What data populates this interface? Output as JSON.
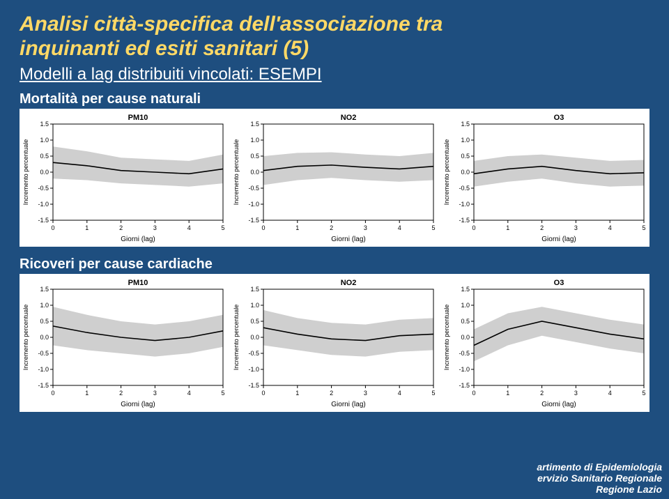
{
  "slide": {
    "title_line1": "Analisi città-specifica dell'associazione tra",
    "title_line2": "inquinanti ed esiti sanitari (5)",
    "subtitle": "Modelli a lag distribuiti vincolati: ESEMPI",
    "section1_label": "Mortalità per cause naturali",
    "section2_label": "Ricoveri per cause cardiache",
    "background_color": "#1e4e7f",
    "title_color": "#ffd966"
  },
  "chart_common": {
    "xlabel": "Giorni (lag)",
    "ylabel": "Incremento percentuale",
    "xlim": [
      0,
      5
    ],
    "ylim": [
      -1.5,
      1.5
    ],
    "xticks": [
      0,
      1,
      2,
      3,
      4,
      5
    ],
    "yticks": [
      -1.5,
      -1.0,
      -0.5,
      0.0,
      0.5,
      1.0,
      1.5
    ],
    "label_fontsize": 10,
    "tick_fontsize": 9,
    "title_fontsize": 11,
    "band_fill": "#cfcfcf",
    "line_color": "#000000",
    "axis_color": "#000000",
    "background": "#ffffff"
  },
  "rows": [
    {
      "id": "mortality",
      "charts": [
        {
          "title": "PM10",
          "x": [
            0,
            1,
            2,
            3,
            4,
            5
          ],
          "mean": [
            0.3,
            0.2,
            0.05,
            0.0,
            -0.05,
            0.1
          ],
          "lower": [
            -0.2,
            -0.25,
            -0.35,
            -0.4,
            -0.45,
            -0.35
          ],
          "upper": [
            0.8,
            0.65,
            0.45,
            0.4,
            0.35,
            0.55
          ]
        },
        {
          "title": "NO2",
          "x": [
            0,
            1,
            2,
            3,
            4,
            5
          ],
          "mean": [
            0.05,
            0.18,
            0.22,
            0.15,
            0.1,
            0.18
          ],
          "lower": [
            -0.4,
            -0.25,
            -0.18,
            -0.25,
            -0.3,
            -0.25
          ],
          "upper": [
            0.5,
            0.6,
            0.62,
            0.55,
            0.5,
            0.6
          ]
        },
        {
          "title": "O3",
          "x": [
            0,
            1,
            2,
            3,
            4,
            5
          ],
          "mean": [
            -0.05,
            0.1,
            0.18,
            0.05,
            -0.05,
            -0.02
          ],
          "lower": [
            -0.45,
            -0.3,
            -0.2,
            -0.35,
            -0.45,
            -0.42
          ],
          "upper": [
            0.35,
            0.5,
            0.55,
            0.45,
            0.35,
            0.38
          ]
        }
      ]
    },
    {
      "id": "cardiac",
      "charts": [
        {
          "title": "PM10",
          "x": [
            0,
            1,
            2,
            3,
            4,
            5
          ],
          "mean": [
            0.35,
            0.15,
            0.0,
            -0.1,
            0.0,
            0.2
          ],
          "lower": [
            -0.25,
            -0.4,
            -0.5,
            -0.6,
            -0.5,
            -0.3
          ],
          "upper": [
            0.95,
            0.7,
            0.5,
            0.4,
            0.5,
            0.7
          ]
        },
        {
          "title": "NO2",
          "x": [
            0,
            1,
            2,
            3,
            4,
            5
          ],
          "mean": [
            0.3,
            0.1,
            -0.05,
            -0.1,
            0.05,
            0.1
          ],
          "lower": [
            -0.25,
            -0.4,
            -0.55,
            -0.6,
            -0.45,
            -0.4
          ],
          "upper": [
            0.85,
            0.6,
            0.45,
            0.4,
            0.55,
            0.6
          ]
        },
        {
          "title": "O3",
          "x": [
            0,
            1,
            2,
            3,
            4,
            5
          ],
          "mean": [
            -0.25,
            0.25,
            0.5,
            0.3,
            0.1,
            -0.05
          ],
          "lower": [
            -0.75,
            -0.25,
            0.05,
            -0.15,
            -0.35,
            -0.5
          ],
          "upper": [
            0.25,
            0.75,
            0.95,
            0.75,
            0.55,
            0.4
          ]
        }
      ]
    }
  ],
  "footer": {
    "line1": "artimento di Epidemiologia",
    "line2": "ervizio Sanitario Regionale",
    "line3": "Regione Lazio"
  }
}
